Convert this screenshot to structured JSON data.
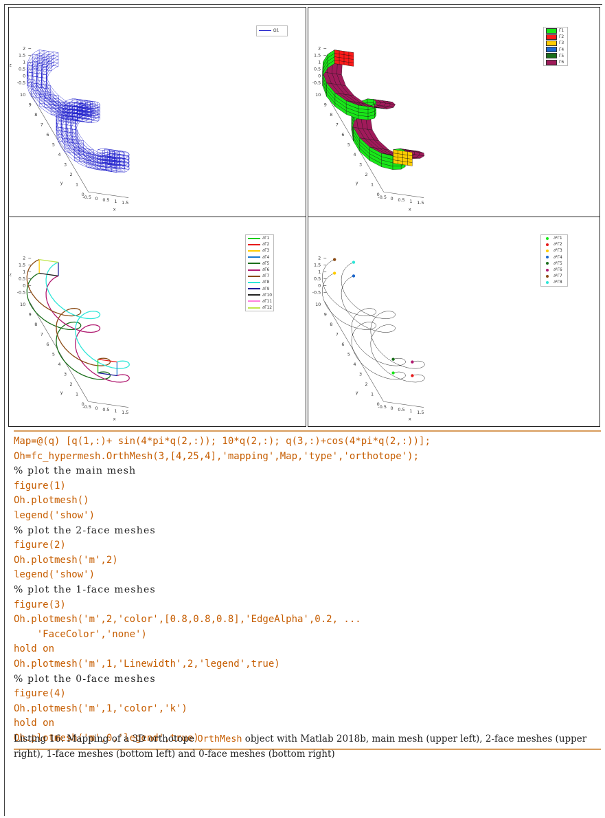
{
  "figures": {
    "axis": {
      "z_ticks": [
        "2",
        "1.5",
        "1",
        "0.5",
        "0",
        "-0.5"
      ],
      "z_label": "z",
      "y_ticks": [
        "10",
        "9",
        "8",
        "7",
        "6",
        "5",
        "4",
        "3",
        "2",
        "1",
        "0"
      ],
      "y_label": "y",
      "x_ticks": [
        "-0.5",
        "0",
        "0.5",
        "1",
        "1.5"
      ],
      "x_label": "x"
    },
    "fig1": {
      "legend": [
        "Ω1"
      ]
    },
    "fig2": {
      "legend": [
        {
          "label": "Γ1",
          "color": "#19e619"
        },
        {
          "label": "Γ2",
          "color": "#ff1a1a"
        },
        {
          "label": "Γ3",
          "color": "#ffcc00"
        },
        {
          "label": "Γ4",
          "color": "#1a66cc"
        },
        {
          "label": "Γ5",
          "color": "#1a6e1a"
        },
        {
          "label": "Γ6",
          "color": "#a01a5a"
        }
      ]
    },
    "fig3": {
      "legend": [
        {
          "label": "∂Γ1",
          "color": "#19cc19"
        },
        {
          "label": "∂Γ2",
          "color": "#e61a1a"
        },
        {
          "label": "∂Γ3",
          "color": "#ffcc00"
        },
        {
          "label": "∂Γ4",
          "color": "#1a7ad0"
        },
        {
          "label": "∂Γ5",
          "color": "#1a6e1a"
        },
        {
          "label": "∂Γ6",
          "color": "#b01a70"
        },
        {
          "label": "∂Γ7",
          "color": "#8a4a14"
        },
        {
          "label": "∂Γ8",
          "color": "#2ee6d8"
        },
        {
          "label": "∂Γ9",
          "color": "#1a1a99"
        },
        {
          "label": "∂Γ10",
          "color": "#222222"
        },
        {
          "label": "∂Γ11",
          "color": "#ff80dd"
        },
        {
          "label": "∂Γ12",
          "color": "#bfe64d"
        }
      ]
    },
    "fig4": {
      "legend": [
        {
          "label": "∂²Γ1",
          "color": "#19e619"
        },
        {
          "label": "∂²Γ2",
          "color": "#e61a1a"
        },
        {
          "label": "∂²Γ3",
          "color": "#ffcc00"
        },
        {
          "label": "∂²Γ4",
          "color": "#1a66cc"
        },
        {
          "label": "∂²Γ5",
          "color": "#1a6e1a"
        },
        {
          "label": "∂²Γ6",
          "color": "#b01a70"
        },
        {
          "label": "∂²Γ7",
          "color": "#8a4a14"
        },
        {
          "label": "∂²Γ8",
          "color": "#2ee6d8"
        }
      ]
    }
  },
  "code": [
    "Map=@(q) [q(1,:)+ sin(4*pi*q(2,:)); 10*q(2,:); q(3,:)+cos(4*pi*q(2,:))];",
    "Oh=fc_hypermesh.OrthMesh(3,[4,25,4],'mapping',Map,'type','orthotope');",
    "% plot the main mesh",
    "figure(1)",
    "Oh.plotmesh()",
    "legend('show')",
    "% plot the 2-face meshes",
    "figure(2)",
    "Oh.plotmesh('m',2)",
    "legend('show')",
    "% plot the 1-face meshes",
    "figure(3)",
    "Oh.plotmesh('m',2,'color',[0.8,0.8,0.8],'EdgeAlpha',0.2, ...",
    "    'FaceColor','none')",
    "hold on",
    "Oh.plotmesh('m',1,'Linewidth',2,'legend',true)",
    "% plot the 0-face meshes",
    "figure(4)",
    "Oh.plotmesh('m',1,'color','k')",
    "hold on",
    "Oh.plotmesh('m',0,'legend',true)"
  ],
  "caption": {
    "prefix": "Listing 16: Mapping of a 3D orthotope ",
    "code_word": "OrthMesh",
    "suffix": " object with Matlab 2018b, main mesh (upper left), 2-face meshes (upper right), 1-face meshes (bottom left) and 0-face meshes (bottom right)"
  },
  "colors": {
    "code": "#c65d00",
    "rule": "#d89c5c",
    "mesh_blue": "#2222cc",
    "face_green": "#19e619",
    "face_purple": "#a01a5a"
  }
}
